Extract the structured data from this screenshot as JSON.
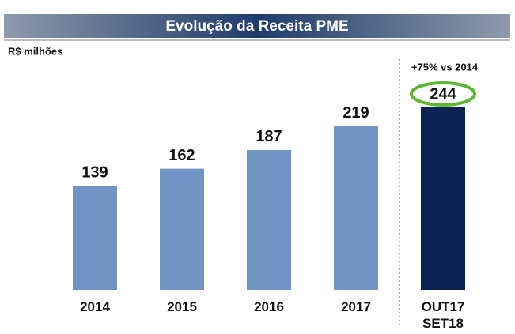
{
  "chart_data": {
    "type": "bar",
    "title": "Evolução da Receita PME",
    "subtitle": "R$ milhões",
    "categories": [
      "2014",
      "2015",
      "2016",
      "2017",
      "OUT17\nSET18"
    ],
    "values": [
      139,
      162,
      187,
      219,
      244
    ],
    "colors": [
      "#7094c4",
      "#7094c4",
      "#7094c4",
      "#7094c4",
      "#0b2253"
    ],
    "annotation": "+75% vs 2014",
    "highlight_color": "#5cb82e"
  }
}
